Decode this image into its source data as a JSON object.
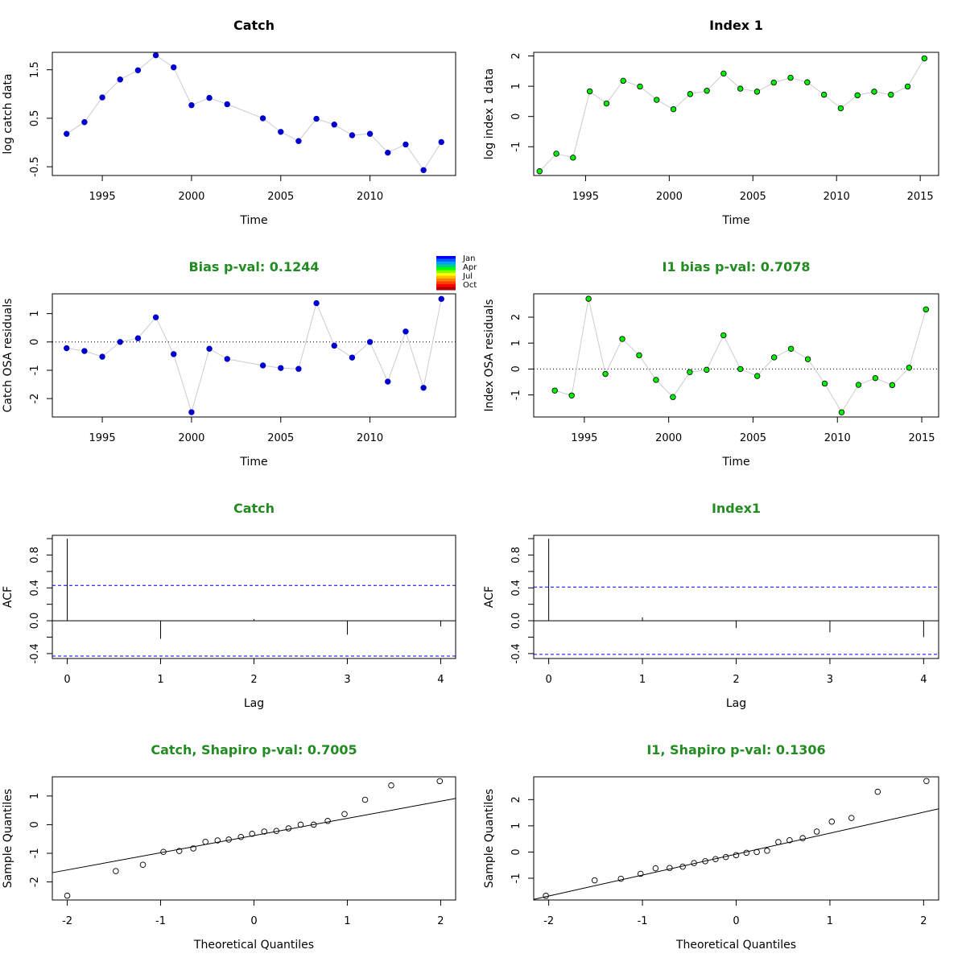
{
  "chart_data": [
    {
      "id": "catch-ts",
      "type": "line",
      "title": "Catch",
      "title_color": "#000000",
      "xlabel": "Time",
      "ylabel": "log catch data",
      "xlim": [
        1992.2,
        2014.8
      ],
      "ylim": [
        -0.68,
        1.86
      ],
      "xticks": [
        1995,
        2000,
        2005,
        2010
      ],
      "xtick_labels": [
        "1995",
        "2000",
        "2005",
        "2010"
      ],
      "yticks": [
        -0.5,
        0.5,
        1.5
      ],
      "ytick_labels": [
        "-0.5",
        "0.5",
        "1.5"
      ],
      "ytick_rotated": true,
      "x": [
        1993,
        1994,
        1995,
        1996,
        1997,
        1998,
        1999,
        2000,
        2001,
        2002,
        2004,
        2005,
        2006,
        2007,
        2008,
        2009,
        2010,
        2011,
        2012,
        2013,
        2014
      ],
      "y": [
        0.18,
        0.42,
        0.93,
        1.3,
        1.49,
        1.8,
        1.55,
        0.77,
        0.92,
        0.79,
        0.5,
        0.22,
        0.03,
        0.49,
        0.37,
        0.15,
        0.18,
        -0.21,
        -0.04,
        -0.57,
        0.01
      ],
      "line_color": "#cccccc",
      "point_fill": "#0000cd",
      "point_stroke": "#0000cd"
    },
    {
      "id": "index1-ts",
      "type": "line",
      "title": "Index 1",
      "title_color": "#000000",
      "xlabel": "Time",
      "ylabel": "log index 1 data",
      "xlim": [
        1991.9,
        2016.1
      ],
      "ylim": [
        -1.95,
        2.12
      ],
      "xticks": [
        1995,
        2000,
        2005,
        2010,
        2015
      ],
      "xtick_labels": [
        "1995",
        "2000",
        "2005",
        "2010",
        "2015"
      ],
      "yticks": [
        -1,
        0,
        1,
        2
      ],
      "ytick_labels": [
        "-1",
        "0",
        "1",
        "2"
      ],
      "ytick_rotated": true,
      "x": [
        1992.25,
        1993.25,
        1994.25,
        1995.25,
        1996.25,
        1997.25,
        1998.25,
        1999.25,
        2000.25,
        2001.25,
        2002.25,
        2003.25,
        2004.25,
        2005.25,
        2006.25,
        2007.25,
        2008.25,
        2009.25,
        2010.25,
        2011.25,
        2012.25,
        2013.25,
        2014.25,
        2015.25
      ],
      "y": [
        -1.81,
        -1.23,
        -1.36,
        0.83,
        0.43,
        1.18,
        0.99,
        0.55,
        0.24,
        0.74,
        0.85,
        1.42,
        0.92,
        0.82,
        1.12,
        1.28,
        1.13,
        0.72,
        0.27,
        0.7,
        0.82,
        0.72,
        0.99,
        1.92
      ],
      "line_color": "#cccccc",
      "point_fill": "#00ee00",
      "point_stroke": "#000000"
    },
    {
      "id": "catch-resid",
      "type": "line",
      "title": "Bias p-val: 0.1244",
      "title_color": "#228b22",
      "xlabel": "Time",
      "ylabel": "Catch OSA residuals",
      "xlim": [
        1992.2,
        2014.8
      ],
      "ylim": [
        -2.65,
        1.7
      ],
      "xticks": [
        1995,
        2000,
        2005,
        2010
      ],
      "xtick_labels": [
        "1995",
        "2000",
        "2005",
        "2010"
      ],
      "yticks": [
        -2,
        -1,
        0,
        1
      ],
      "ytick_labels": [
        "-2",
        "-1",
        "0",
        "1"
      ],
      "ytick_rotated": true,
      "hline": 0,
      "x": [
        1993,
        1994,
        1995,
        1996,
        1997,
        1998,
        1999,
        2000,
        2001,
        2002,
        2004,
        2005,
        2006,
        2007,
        2008,
        2009,
        2010,
        2011,
        2012,
        2013,
        2014
      ],
      "y": [
        -0.22,
        -0.32,
        -0.52,
        0.0,
        0.13,
        0.87,
        -0.43,
        -2.48,
        -0.24,
        -0.6,
        -0.83,
        -0.92,
        -0.95,
        1.37,
        -0.13,
        -0.55,
        0.0,
        -1.4,
        0.37,
        -1.62,
        1.52
      ],
      "line_color": "#cccccc",
      "point_fill": "#0000cd",
      "point_stroke": "#0000cd",
      "color_legend": {
        "labels": [
          "Jan",
          "Apr",
          "Jul",
          "Oct"
        ],
        "colors": [
          "#0000ff",
          "#0060ff",
          "#00a0ff",
          "#00d080",
          "#00ff00",
          "#80ff00",
          "#ffff00",
          "#ffc000",
          "#ff8000",
          "#ff4000",
          "#ff0000",
          "#b00000"
        ]
      }
    },
    {
      "id": "index1-resid",
      "type": "line",
      "title": "I1 bias p-val: 0.7078",
      "title_color": "#228b22",
      "xlabel": "Time",
      "ylabel": "Index OSA residuals",
      "xlim": [
        1992.0,
        2016.0
      ],
      "ylim": [
        -1.85,
        2.9
      ],
      "xticks": [
        1995,
        2000,
        2005,
        2010,
        2015
      ],
      "xtick_labels": [
        "1995",
        "2000",
        "2005",
        "2010",
        "2015"
      ],
      "yticks": [
        -1,
        0,
        1,
        2
      ],
      "ytick_labels": [
        "-1",
        "0",
        "1",
        "2"
      ],
      "ytick_rotated": true,
      "hline": 0,
      "x": [
        1993.25,
        1994.25,
        1995.25,
        1996.25,
        1997.25,
        1998.25,
        1999.25,
        2000.25,
        2001.25,
        2002.25,
        2003.25,
        2004.25,
        2005.25,
        2006.25,
        2007.25,
        2008.25,
        2009.25,
        2010.25,
        2011.25,
        2012.25,
        2013.25,
        2014.25,
        2015.25
      ],
      "y": [
        -0.83,
        -1.02,
        2.71,
        -0.19,
        1.16,
        0.53,
        -0.42,
        -1.08,
        -0.12,
        -0.03,
        1.3,
        0.0,
        -0.27,
        0.45,
        0.78,
        0.38,
        -0.56,
        -1.67,
        -0.61,
        -0.35,
        -0.62,
        0.05,
        2.3
      ],
      "line_color": "#cccccc",
      "point_fill": "#00ee00",
      "point_stroke": "#000000"
    },
    {
      "id": "catch-acf",
      "type": "bar",
      "title": "Catch",
      "title_color": "#228b22",
      "xlabel": "Lag",
      "ylabel": "ACF",
      "xlim": [
        -0.16,
        4.16
      ],
      "ylim": [
        -0.46,
        1.04
      ],
      "xticks": [
        0,
        1,
        2,
        3,
        4
      ],
      "xtick_labels": [
        "0",
        "1",
        "2",
        "3",
        "4"
      ],
      "yticks": [
        -0.4,
        0.0,
        0.4,
        0.8
      ],
      "ytick_labels": [
        "-0.4",
        "0.0",
        "0.4",
        "0.8"
      ],
      "ytick_rotated": true,
      "minor_yticks": [
        -0.2,
        0.2,
        0.6,
        1.0
      ],
      "lags": [
        0,
        1,
        2,
        3,
        4
      ],
      "acf": [
        1.0,
        -0.22,
        0.02,
        -0.17,
        -0.07
      ],
      "ci": 0.43
    },
    {
      "id": "index1-acf",
      "type": "bar",
      "title": "Index1",
      "title_color": "#228b22",
      "xlabel": "Lag",
      "ylabel": "ACF",
      "xlim": [
        -0.16,
        4.16
      ],
      "ylim": [
        -0.46,
        1.04
      ],
      "xticks": [
        0,
        1,
        2,
        3,
        4
      ],
      "xtick_labels": [
        "0",
        "1",
        "2",
        "3",
        "4"
      ],
      "yticks": [
        -0.4,
        0.0,
        0.4,
        0.8
      ],
      "ytick_labels": [
        "-0.4",
        "0.0",
        "0.4",
        "0.8"
      ],
      "ytick_rotated": true,
      "minor_yticks": [
        -0.2,
        0.2,
        0.6,
        1.0
      ],
      "lags": [
        0,
        1,
        2,
        3,
        4
      ],
      "acf": [
        1.0,
        0.04,
        -0.09,
        -0.14,
        -0.2
      ],
      "ci": 0.41
    },
    {
      "id": "catch-qq",
      "type": "scatter",
      "title": "Catch, Shapiro p-val: 0.7005",
      "title_color": "#228b22",
      "xlabel": "Theoretical Quantiles",
      "ylabel": "Sample Quantiles",
      "xlim": [
        -2.16,
        2.16
      ],
      "ylim": [
        -2.63,
        1.67
      ],
      "xticks": [
        -2,
        -1,
        0,
        1,
        2
      ],
      "xtick_labels": [
        "-2",
        "-1",
        "0",
        "1",
        "2"
      ],
      "yticks": [
        -2,
        -1,
        0,
        1
      ],
      "ytick_labels": [
        "-2",
        "-1",
        "0",
        "1"
      ],
      "ytick_rotated": true,
      "x": [
        -2.0,
        -1.48,
        -1.19,
        -0.97,
        -0.8,
        -0.65,
        -0.52,
        -0.39,
        -0.27,
        -0.14,
        -0.02,
        0.11,
        0.24,
        0.37,
        0.5,
        0.64,
        0.79,
        0.97,
        1.19,
        1.47,
        1.99
      ],
      "y": [
        -2.48,
        -1.62,
        -1.4,
        -0.95,
        -0.92,
        -0.83,
        -0.6,
        -0.55,
        -0.52,
        -0.43,
        -0.32,
        -0.24,
        -0.22,
        -0.13,
        0.0,
        0.0,
        0.13,
        0.37,
        0.87,
        1.37,
        1.52
      ],
      "refline": {
        "intercept": -0.38,
        "slope": 0.6
      }
    },
    {
      "id": "index1-qq",
      "type": "scatter",
      "title": "I1, Shapiro p-val: 0.1306",
      "title_color": "#228b22",
      "xlabel": "Theoretical Quantiles",
      "ylabel": "Sample Quantiles",
      "xlim": [
        -2.16,
        2.16
      ],
      "ylim": [
        -1.83,
        2.87
      ],
      "xticks": [
        -2,
        -1,
        0,
        1,
        2
      ],
      "xtick_labels": [
        "-2",
        "-1",
        "0",
        "1",
        "2"
      ],
      "yticks": [
        -1,
        0,
        1,
        2
      ],
      "ytick_labels": [
        "-1",
        "0",
        "1",
        "2"
      ],
      "ytick_rotated": true,
      "x": [
        -2.03,
        -1.51,
        -1.23,
        -1.02,
        -0.86,
        -0.71,
        -0.57,
        -0.45,
        -0.33,
        -0.22,
        -0.11,
        0.0,
        0.11,
        0.22,
        0.33,
        0.45,
        0.57,
        0.71,
        0.86,
        1.02,
        1.23,
        1.51,
        2.03
      ],
      "y": [
        -1.67,
        -1.08,
        -1.02,
        -0.83,
        -0.62,
        -0.61,
        -0.56,
        -0.42,
        -0.35,
        -0.27,
        -0.19,
        -0.12,
        -0.03,
        0.0,
        0.05,
        0.38,
        0.45,
        0.53,
        0.78,
        1.16,
        1.3,
        2.3,
        2.71
      ],
      "refline": {
        "intercept": -0.08,
        "slope": 0.8
      }
    }
  ]
}
